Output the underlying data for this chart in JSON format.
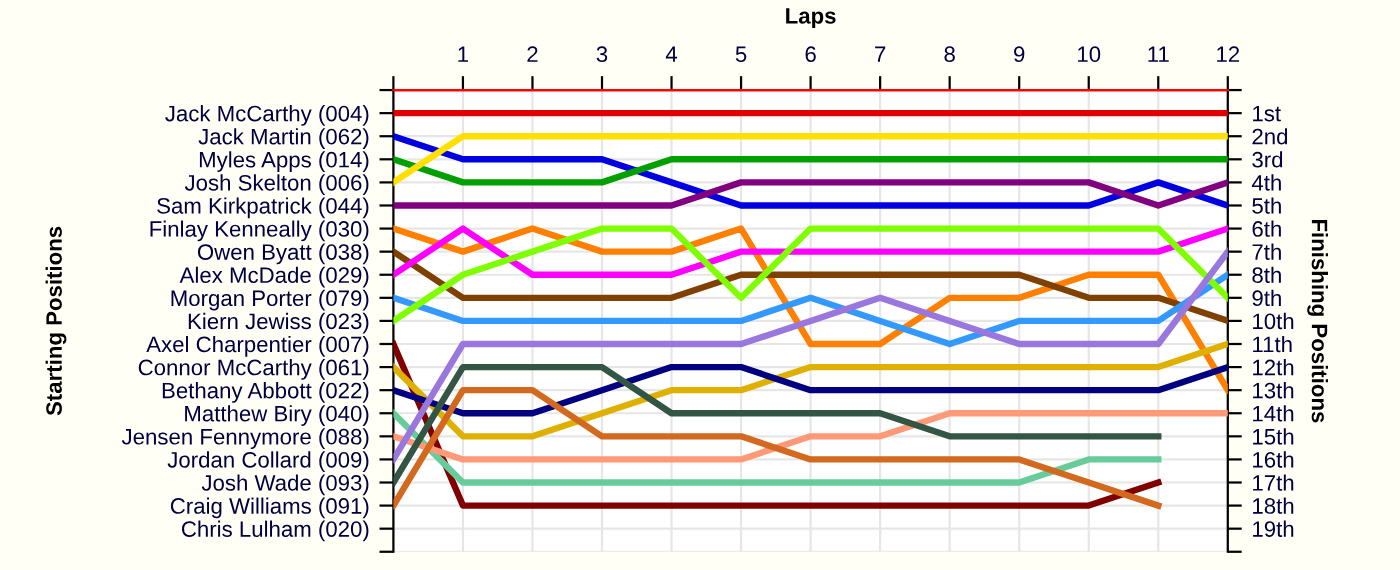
{
  "chart_data": {
    "type": "line",
    "xlabel": "Laps",
    "y2label": "Finishing Positions",
    "annotations": [
      "Starting Positions"
    ],
    "x": [
      0,
      1,
      2,
      3,
      4,
      5,
      6,
      7,
      8,
      9,
      10,
      11,
      12
    ],
    "xlim": [
      0,
      12
    ],
    "xticks": [
      {
        "value": 0,
        "label": null
      },
      1,
      2,
      3,
      4,
      5,
      6,
      7,
      8,
      9,
      10,
      11,
      12
    ],
    "y_categories": [
      "Jack McCarthy (004)",
      "Jack Martin (062)",
      "Myles Apps (014)",
      "Josh Skelton (006)",
      "Sam Kirkpatrick (044)",
      "Finlay Kenneally (030)",
      "Owen Byatt (038)",
      "Alex McDade (029)",
      "Morgan Porter (079)",
      "Kiern Jewiss (023)",
      "Axel Charpentier (007)",
      "Connor McCarthy (061)",
      "Bethany Abbott (022)",
      "Matthew Biry (040)",
      "Jensen Fennymore (088)",
      "Jordan Collard (009)",
      "Josh Wade (093)",
      "Craig Williams (091)",
      "Chris Lulham (020)"
    ],
    "y2lim": [
      20,
      0
    ],
    "y2ticks": [
      {
        "value": 0,
        "label": null
      },
      {
        "value": 1,
        "label": "1st"
      },
      {
        "value": 2,
        "label": "2nd"
      },
      {
        "value": 3,
        "label": "3rd"
      },
      {
        "value": 4,
        "label": "4th"
      },
      {
        "value": 5,
        "label": "5th"
      },
      {
        "value": 6,
        "label": "6th"
      },
      {
        "value": 7,
        "label": "7th"
      },
      {
        "value": 8,
        "label": "8th"
      },
      {
        "value": 9,
        "label": "9th"
      },
      {
        "value": 10,
        "label": "10th"
      },
      {
        "value": 11,
        "label": "11th"
      },
      {
        "value": 12,
        "label": "12th"
      },
      {
        "value": 13,
        "label": "13th"
      },
      {
        "value": 14,
        "label": "14th"
      },
      {
        "value": 15,
        "label": "15th"
      },
      {
        "value": 16,
        "label": "16th"
      },
      {
        "value": 17,
        "label": "17th"
      },
      {
        "value": 18,
        "label": "18th"
      },
      {
        "value": 19,
        "label": "19th"
      },
      {
        "value": 20,
        "label": null
      }
    ],
    "grid": true,
    "legend": false,
    "marker": "none",
    "line_style": "solid",
    "series": [
      {
        "axis": "y2",
        "color": "#e00000",
        "values": [
          1,
          1,
          1,
          1,
          1,
          1,
          1,
          1,
          1,
          1,
          1,
          1,
          1
        ]
      },
      {
        "axis": "y2",
        "color": "#0000e0",
        "values": [
          2,
          3,
          3,
          3,
          4,
          5,
          5,
          5,
          5,
          5,
          5,
          4,
          5
        ]
      },
      {
        "axis": "y2",
        "color": "#00a000",
        "values": [
          3,
          4,
          4,
          4,
          3,
          3,
          3,
          3,
          3,
          3,
          3,
          3,
          3
        ]
      },
      {
        "axis": "y2",
        "color": "#ffe000",
        "values": [
          4,
          2,
          2,
          2,
          2,
          2,
          2,
          2,
          2,
          2,
          2,
          2,
          2
        ]
      },
      {
        "axis": "y2",
        "color": "#800080",
        "values": [
          5,
          5,
          5,
          5,
          5,
          4,
          4,
          4,
          4,
          4,
          4,
          5,
          4
        ]
      },
      {
        "axis": "y2",
        "color": "#ff8000",
        "values": [
          6,
          7,
          6,
          7,
          7,
          6,
          11,
          11,
          9,
          9,
          8,
          8,
          13
        ]
      },
      {
        "axis": "y2",
        "color": "#804000",
        "values": [
          7,
          9,
          9,
          9,
          9,
          8,
          8,
          8,
          8,
          8,
          9,
          9,
          10
        ]
      },
      {
        "axis": "y2",
        "color": "#ff00ff",
        "values": [
          8,
          6,
          8,
          8,
          8,
          7,
          7,
          7,
          7,
          7,
          7,
          7,
          6
        ]
      },
      {
        "axis": "y2",
        "color": "#3399ff",
        "values": [
          9,
          10,
          10,
          10,
          10,
          10,
          9,
          10,
          11,
          10,
          10,
          10,
          8
        ]
      },
      {
        "axis": "y2",
        "color": "#80ff00",
        "values": [
          10,
          8,
          7,
          6,
          6,
          9,
          6,
          6,
          6,
          6,
          6,
          6,
          9
        ]
      },
      {
        "axis": "y2",
        "color": "#800000",
        "values": [
          11,
          18,
          18,
          18,
          18,
          18,
          18,
          18,
          18,
          18,
          18,
          17,
          null
        ]
      },
      {
        "axis": "y2",
        "color": "#e0b000",
        "values": [
          12,
          15,
          15,
          14,
          13,
          13,
          12,
          12,
          12,
          12,
          12,
          12,
          11
        ]
      },
      {
        "axis": "y2",
        "color": "#000080",
        "values": [
          13,
          14,
          14,
          13,
          12,
          12,
          13,
          13,
          13,
          13,
          13,
          13,
          12
        ]
      },
      {
        "axis": "y2",
        "color": "#66cc99",
        "values": [
          14,
          17,
          17,
          17,
          17,
          17,
          17,
          17,
          17,
          17,
          16,
          16,
          null
        ]
      },
      {
        "axis": "y2",
        "color": "#ff9977",
        "values": [
          15,
          16,
          16,
          16,
          16,
          16,
          15,
          15,
          14,
          14,
          14,
          14,
          14
        ]
      },
      {
        "axis": "y2",
        "color": "#9977dd",
        "values": [
          16,
          11,
          11,
          11,
          11,
          11,
          10,
          9,
          10,
          11,
          11,
          11,
          7
        ]
      },
      {
        "axis": "y2",
        "color": "#335544",
        "values": [
          17,
          12,
          12,
          12,
          14,
          14,
          14,
          14,
          15,
          15,
          15,
          15,
          null
        ]
      },
      {
        "axis": "y2",
        "color": "#d2691e",
        "values": [
          18,
          13,
          13,
          15,
          15,
          15,
          16,
          16,
          16,
          16,
          17,
          18,
          null
        ]
      }
    ]
  }
}
